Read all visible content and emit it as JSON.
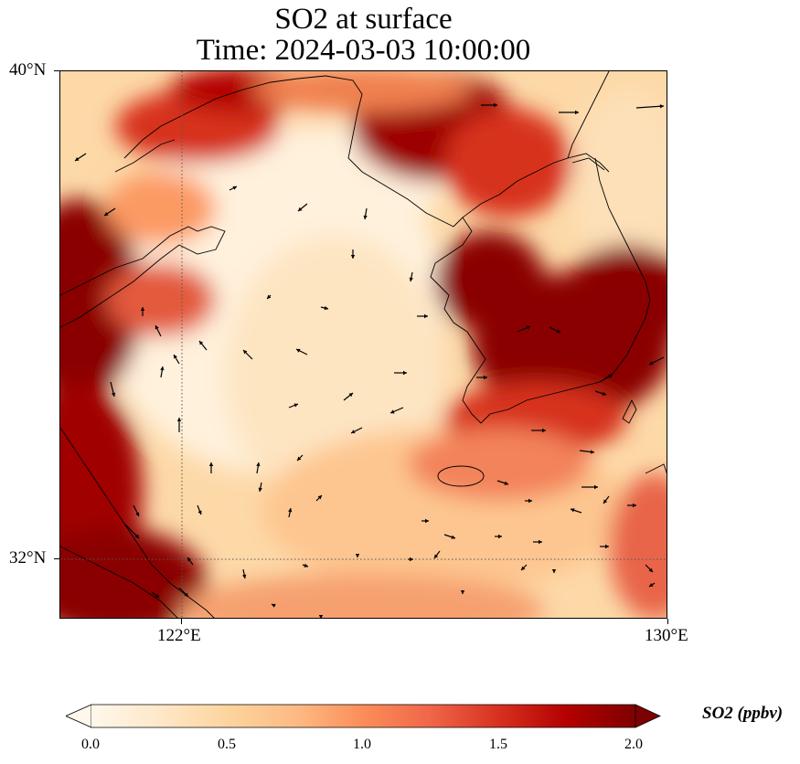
{
  "title": {
    "line1": "SO2 at surface",
    "line2": "Time: 2024-03-03 10:00:00"
  },
  "map": {
    "lat_labels": [
      "40°N",
      "32°N"
    ],
    "lon_labels": [
      "122°E",
      "130°E"
    ],
    "extent": {
      "lon_min": 120,
      "lon_max": 130,
      "lat_min": 31,
      "lat_max": 40
    },
    "gridlines": {
      "lon": [
        122
      ],
      "lat": [
        32
      ],
      "style": "dotted"
    },
    "field": "SO2 concentration (ppbv)",
    "wind_vectors": true
  },
  "colorbar": {
    "label": "SO2 (ppbv)",
    "ticks": [
      "0.0",
      "0.5",
      "1.0",
      "1.5",
      "2.0"
    ],
    "min": 0,
    "max": 2,
    "extend": "both",
    "colors": [
      "#fff7ec",
      "#fee8c8",
      "#fdd49e",
      "#fdbb84",
      "#fc8d59",
      "#ef6548",
      "#d7301f",
      "#b30000",
      "#7f0000"
    ]
  }
}
